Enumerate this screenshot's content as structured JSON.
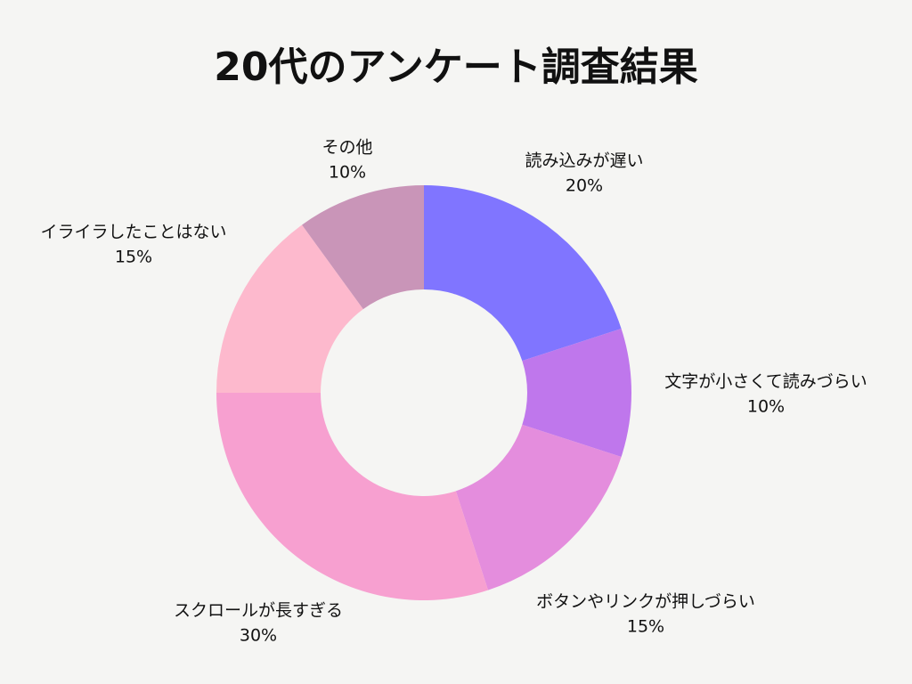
{
  "chart_data": {
    "type": "donut",
    "title": "20代のアンケート調査結果",
    "categories": [
      "読み込みが遅い",
      "文字が小さくて読みづらい",
      "ボタンやリンクが押しづらい",
      "スクロールが長すぎる",
      "イライラしたことはない",
      "その他"
    ],
    "values": [
      20,
      10,
      15,
      30,
      15,
      10
    ],
    "value_labels": [
      "20%",
      "10%",
      "15%",
      "30%",
      "15%",
      "10%"
    ],
    "colors": [
      "#8075ff",
      "#bf77ec",
      "#e48ddd",
      "#f7a0d0",
      "#fdb9cd",
      "#c995b8"
    ]
  }
}
